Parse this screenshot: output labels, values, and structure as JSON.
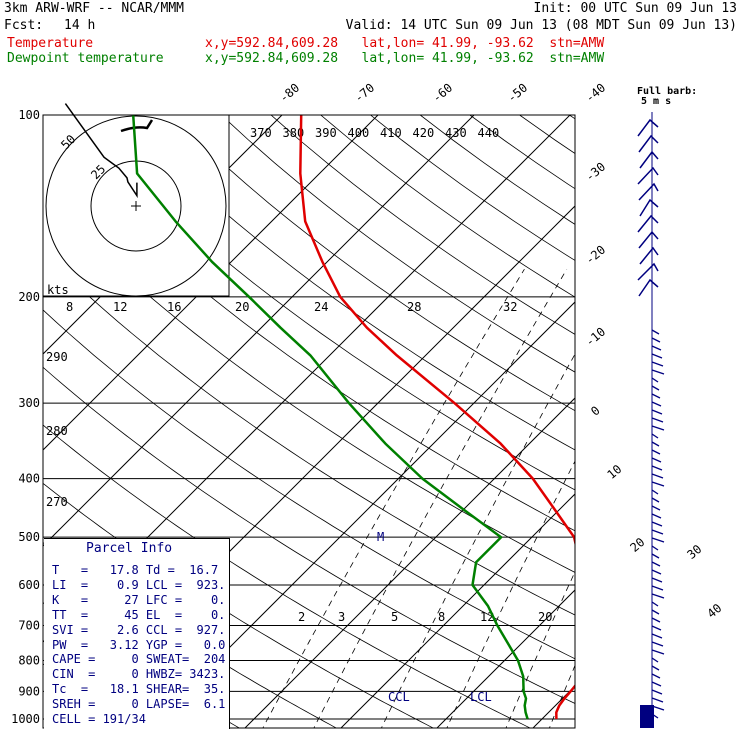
{
  "header": {
    "model": "3km ARW-WRF -- NCAR/MMM",
    "init": "Init: 00 UTC Sun 09 Jun 13",
    "fcst_label": "Fcst:",
    "fcst_value": "14 h",
    "valid": "Valid: 14 UTC Sun 09 Jun 13 (08 MDT Sun 09 Jun 13)",
    "temp_label": "Temperature",
    "temp_loc": "x,y=592.84,609.28   lat,lon= 41.99, -93.62  stn=AMW",
    "dew_label": "Dewpoint temperature",
    "dew_loc": "x,y=592.84,609.28   lat,lon= 41.99, -93.62  stn=AMW"
  },
  "barb_label": {
    "line1": "Full barb:",
    "line2": "5 m s"
  },
  "hodograph": {
    "rings": [
      "25",
      "50"
    ],
    "kts": "kts"
  },
  "parcel": {
    "title": "Parcel Info",
    "rows": [
      "T   =   17.8 Td =  16.7",
      "LI  =    0.9 LCL =  923.",
      "K   =     27 LFC =    0.",
      "TT  =     45 EL  =    0.",
      "SVI =    2.6 CCL =  927.",
      "PW  =   3.12 YGP =   0.0",
      "CAPE =     0 SWEAT=  204",
      "CIN  =     0 HWBZ= 3423.",
      "Tc  =   18.1 SHEAR=  35.",
      "SREH =     0 LAPSE=  6.1",
      "CELL = 191/34"
    ]
  },
  "annotations": {
    "ccl": "CCL",
    "lcl": "LCL",
    "m": "M"
  },
  "colors": {
    "temperature": "#e00000",
    "dewpoint": "#008000",
    "isobar": "#000000",
    "barbs": "#000080"
  },
  "chart_data": {
    "type": "line",
    "title": "",
    "y_axis": {
      "label": "",
      "scale": "log-pressure",
      "ticks": [
        100,
        200,
        300,
        400,
        500,
        600,
        700,
        800,
        900,
        1000
      ]
    },
    "temperature_ticks": [
      -80,
      -70,
      -60,
      -50,
      -40,
      -30,
      -20,
      -10,
      0,
      10,
      20,
      30,
      40
    ],
    "theta_labels_top": [
      370,
      380,
      390,
      400,
      410,
      420,
      430,
      440
    ],
    "theta_labels_left": [
      290,
      280,
      270
    ],
    "mixing_ratio_labels_top": [
      8,
      12,
      16,
      20,
      24,
      28,
      32
    ],
    "mixing_ratio_labels_bottom": [
      2,
      3,
      5,
      8,
      12,
      20
    ],
    "series": [
      {
        "name": "Temperature",
        "points": [
          [
            1000,
            21.5
          ],
          [
            975,
            20.8
          ],
          [
            950,
            20.4
          ],
          [
            925,
            20.2
          ],
          [
            900,
            20.1
          ],
          [
            850,
            19.8
          ],
          [
            800,
            19.5
          ],
          [
            750,
            17.6
          ],
          [
            700,
            15.6
          ],
          [
            650,
            12.8
          ],
          [
            600,
            10.3
          ],
          [
            550,
            7.6
          ],
          [
            500,
            4.4
          ],
          [
            450,
            -0.5
          ],
          [
            400,
            -6.0
          ],
          [
            350,
            -13.0
          ],
          [
            300,
            -22.0
          ],
          [
            250,
            -33.0
          ],
          [
            225,
            -39.0
          ],
          [
            200,
            -45.0
          ],
          [
            175,
            -50.5
          ],
          [
            150,
            -56.5
          ],
          [
            125,
            -62.0
          ],
          [
            100,
            -68.0
          ]
        ]
      },
      {
        "name": "Dewpoint temperature",
        "points": [
          [
            1000,
            18.5
          ],
          [
            975,
            17.6
          ],
          [
            950,
            16.8
          ],
          [
            925,
            16.2
          ],
          [
            900,
            15.2
          ],
          [
            850,
            13.6
          ],
          [
            800,
            11.4
          ],
          [
            750,
            8.6
          ],
          [
            700,
            5.6
          ],
          [
            650,
            2.6
          ],
          [
            600,
            -1.2
          ],
          [
            550,
            -3.2
          ],
          [
            500,
            -3.2
          ],
          [
            450,
            -10.0
          ],
          [
            400,
            -17.5
          ],
          [
            350,
            -25.0
          ],
          [
            300,
            -33.0
          ],
          [
            250,
            -42.0
          ],
          [
            225,
            -48.0
          ],
          [
            200,
            -54.5
          ],
          [
            175,
            -62.0
          ],
          [
            150,
            -70.0
          ],
          [
            125,
            -79.0
          ],
          [
            100,
            -85.5
          ]
        ]
      }
    ],
    "hodograph": [
      [
        0.5,
        -13.0
      ],
      [
        0.5,
        -5.8
      ],
      [
        -4.5,
        -13.4
      ],
      [
        -5.0,
        -15.6
      ],
      [
        -9.5,
        -21.0
      ],
      [
        -17.8,
        -27.1
      ],
      [
        -39.2,
        -56.9
      ]
    ]
  }
}
